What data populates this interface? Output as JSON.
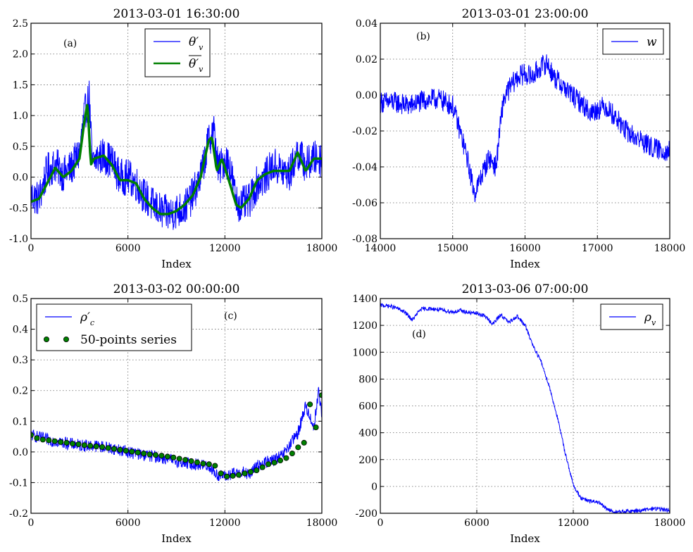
{
  "chart_data": [
    {
      "type": "line",
      "title": "2013-03-01 16:30:00",
      "xlabel": "Index",
      "ylabel": "",
      "xlim": [
        0,
        18000
      ],
      "ylim": [
        -1.0,
        2.5
      ],
      "xticks": [
        "0",
        "6000",
        "12000",
        "18000"
      ],
      "yticks": [
        "-1.0",
        "-0.5",
        "0.0",
        "0.5",
        "1.0",
        "1.5",
        "2.0",
        "2.5"
      ],
      "annotation": "(a)",
      "legend_position": "top-center",
      "series": [
        {
          "name": "θ′_v",
          "legend_text": "θ′",
          "legend_sub": "v",
          "color": "#0000ff",
          "x": [
            0,
            500,
            1000,
            1500,
            2000,
            2500,
            3000,
            3300,
            3600,
            3800,
            4000,
            4500,
            5000,
            5500,
            6000,
            6500,
            7000,
            7500,
            8000,
            8500,
            9000,
            9500,
            10000,
            10500,
            11000,
            11300,
            11600,
            12000,
            12300,
            12700,
            13000,
            13500,
            14000,
            14500,
            15000,
            15500,
            16000,
            16500,
            17000,
            17500,
            18000
          ],
          "values": [
            -0.3,
            -0.35,
            0.1,
            0.2,
            0.05,
            0.15,
            0.4,
            1.0,
            1.3,
            0.2,
            0.3,
            0.35,
            0.25,
            0.0,
            0.0,
            -0.1,
            -0.3,
            -0.45,
            -0.55,
            -0.6,
            -0.55,
            -0.5,
            -0.3,
            0.0,
            0.6,
            0.8,
            0.1,
            0.3,
            0.2,
            -0.4,
            -0.45,
            -0.4,
            -0.1,
            0.0,
            0.2,
            0.1,
            0.05,
            0.4,
            0.2,
            0.3,
            0.3
          ],
          "noise": 0.3
        },
        {
          "name": "θ̄′_v",
          "legend_text": "θ′",
          "legend_sub": "v",
          "color": "#008000",
          "x": [
            0,
            500,
            1000,
            1500,
            2000,
            2500,
            3000,
            3300,
            3500,
            3700,
            3900,
            4500,
            5000,
            5500,
            6000,
            6500,
            7000,
            7500,
            8000,
            8500,
            9000,
            9500,
            10000,
            10500,
            11000,
            11200,
            11500,
            11800,
            12000,
            12300,
            12700,
            13000,
            13500,
            14000,
            14500,
            15000,
            15500,
            16000,
            16500,
            17000,
            17500,
            18000
          ],
          "values": [
            -0.4,
            -0.35,
            -0.1,
            0.15,
            0.0,
            0.1,
            0.3,
            0.9,
            1.2,
            0.2,
            0.3,
            0.35,
            0.2,
            -0.05,
            -0.05,
            -0.1,
            -0.35,
            -0.5,
            -0.6,
            -0.6,
            -0.55,
            -0.45,
            -0.3,
            0.0,
            0.6,
            0.65,
            0.1,
            0.3,
            0.15,
            -0.1,
            -0.45,
            -0.5,
            -0.35,
            -0.05,
            0.05,
            0.1,
            0.1,
            0.1,
            0.4,
            0.1,
            0.3,
            0.3
          ]
        }
      ]
    },
    {
      "type": "line",
      "title": "2013-03-01 23:00:00",
      "xlabel": "Index",
      "ylabel": "",
      "xlim": [
        14000,
        18000
      ],
      "ylim": [
        -0.08,
        0.04
      ],
      "xticks": [
        "14000",
        "15000",
        "16000",
        "17000",
        "18000"
      ],
      "yticks": [
        "-0.08",
        "-0.06",
        "-0.04",
        "-0.02",
        "0.00",
        "0.02",
        "0.04"
      ],
      "annotation": "(b)",
      "legend_position": "top-right",
      "series": [
        {
          "name": "w",
          "legend_text": "w",
          "color": "#0000ff",
          "x": [
            14000,
            14200,
            14400,
            14600,
            14800,
            15000,
            15100,
            15200,
            15300,
            15400,
            15500,
            15600,
            15650,
            15700,
            15800,
            15900,
            16000,
            16100,
            16200,
            16300,
            16400,
            16500,
            16600,
            16700,
            16800,
            16900,
            17000,
            17100,
            17200,
            17300,
            17400,
            17500,
            17600,
            17700,
            17800,
            17900,
            18000
          ],
          "values": [
            -0.004,
            -0.004,
            -0.006,
            -0.003,
            -0.002,
            -0.006,
            -0.02,
            -0.035,
            -0.055,
            -0.045,
            -0.035,
            -0.04,
            -0.02,
            -0.003,
            0.005,
            0.01,
            0.012,
            0.01,
            0.015,
            0.018,
            0.01,
            0.006,
            0.002,
            -0.002,
            -0.005,
            -0.01,
            -0.008,
            -0.006,
            -0.01,
            -0.015,
            -0.02,
            -0.023,
            -0.025,
            -0.028,
            -0.03,
            -0.031,
            -0.031
          ],
          "noise": 0.006
        }
      ]
    },
    {
      "type": "line",
      "title": "2013-03-02 00:00:00",
      "xlabel": "Index",
      "ylabel": "",
      "xlim": [
        0,
        18000
      ],
      "ylim": [
        -0.2,
        0.5
      ],
      "xticks": [
        "0",
        "6000",
        "12000",
        "18000"
      ],
      "yticks": [
        "-0.2",
        "-0.1",
        "0.0",
        "0.1",
        "0.2",
        "0.3",
        "0.4",
        "0.5"
      ],
      "annotation": "(c)",
      "legend_position": "top-left",
      "series": [
        {
          "name": "ρ′_c",
          "legend_text": "ρ′",
          "legend_sub": "c",
          "color": "#0000ff",
          "x": [
            0,
            1000,
            2000,
            3000,
            4000,
            5000,
            6000,
            7000,
            8000,
            9000,
            10000,
            10500,
            11000,
            11500,
            12000,
            12500,
            13000,
            13500,
            14000,
            14500,
            15000,
            15500,
            16000,
            16500,
            17000,
            17500,
            17800,
            18000
          ],
          "values": [
            0.055,
            0.04,
            0.03,
            0.022,
            0.02,
            0.012,
            0.0,
            -0.01,
            -0.018,
            -0.03,
            -0.04,
            -0.042,
            -0.045,
            -0.075,
            -0.08,
            -0.072,
            -0.065,
            -0.075,
            -0.045,
            -0.035,
            -0.025,
            -0.015,
            0.02,
            0.06,
            0.15,
            0.08,
            0.2,
            0.12
          ],
          "noise": 0.02
        },
        {
          "name": "50-points series",
          "legend_text": "50-points series",
          "color": "#008000",
          "marker": "circle",
          "x": [
            0,
            367,
            735,
            1102,
            1469,
            1837,
            2204,
            2571,
            2939,
            3306,
            3673,
            4041,
            4408,
            4776,
            5143,
            5510,
            5878,
            6245,
            6612,
            6980,
            7347,
            7714,
            8082,
            8449,
            8816,
            9184,
            9551,
            9918,
            10286,
            10653,
            11020,
            11388,
            11755,
            12122,
            12490,
            12857,
            13224,
            13592,
            13959,
            14327,
            14694,
            15061,
            15429,
            15796,
            16163,
            16531,
            16898,
            17265,
            17633,
            18000
          ],
          "values": [
            0.055,
            0.045,
            0.04,
            0.038,
            0.035,
            0.032,
            0.03,
            0.027,
            0.025,
            0.022,
            0.02,
            0.018,
            0.016,
            0.013,
            0.01,
            0.007,
            0.004,
            0.001,
            -0.002,
            -0.005,
            -0.008,
            -0.01,
            -0.012,
            -0.015,
            -0.018,
            -0.022,
            -0.026,
            -0.03,
            -0.034,
            -0.038,
            -0.04,
            -0.045,
            -0.07,
            -0.08,
            -0.078,
            -0.075,
            -0.07,
            -0.065,
            -0.06,
            -0.05,
            -0.04,
            -0.035,
            -0.028,
            -0.02,
            -0.005,
            0.015,
            0.03,
            0.155,
            0.08,
            0.185
          ]
        }
      ]
    },
    {
      "type": "line",
      "title": "2013-03-06 07:00:00",
      "xlabel": "Index",
      "ylabel": "",
      "xlim": [
        0,
        18000
      ],
      "ylim": [
        -200,
        1400
      ],
      "xticks": [
        "0",
        "6000",
        "12000",
        "18000"
      ],
      "yticks": [
        "-200",
        "0",
        "200",
        "400",
        "600",
        "800",
        "1000",
        "1200",
        "1400"
      ],
      "annotation": "(d)",
      "legend_position": "top-right",
      "series": [
        {
          "name": "ρ_v",
          "legend_text": "ρ",
          "legend_sub": "v",
          "color": "#0000ff",
          "x": [
            0,
            500,
            1000,
            1500,
            2000,
            2500,
            3000,
            3500,
            4000,
            4500,
            5000,
            5500,
            6000,
            6500,
            7000,
            7500,
            8000,
            8500,
            9000,
            9500,
            10000,
            10500,
            11000,
            11500,
            12000,
            12500,
            13000,
            13500,
            14000,
            14500,
            15000,
            15500,
            16000,
            16500,
            17000,
            17500,
            18000
          ],
          "values": [
            1350,
            1345,
            1330,
            1300,
            1240,
            1320,
            1325,
            1320,
            1310,
            1300,
            1310,
            1295,
            1290,
            1270,
            1210,
            1280,
            1220,
            1270,
            1200,
            1050,
            930,
            750,
            520,
            250,
            10,
            -90,
            -110,
            -115,
            -160,
            -190,
            -190,
            -185,
            -180,
            -175,
            -165,
            -170,
            -180
          ],
          "noise": 15
        }
      ]
    }
  ]
}
